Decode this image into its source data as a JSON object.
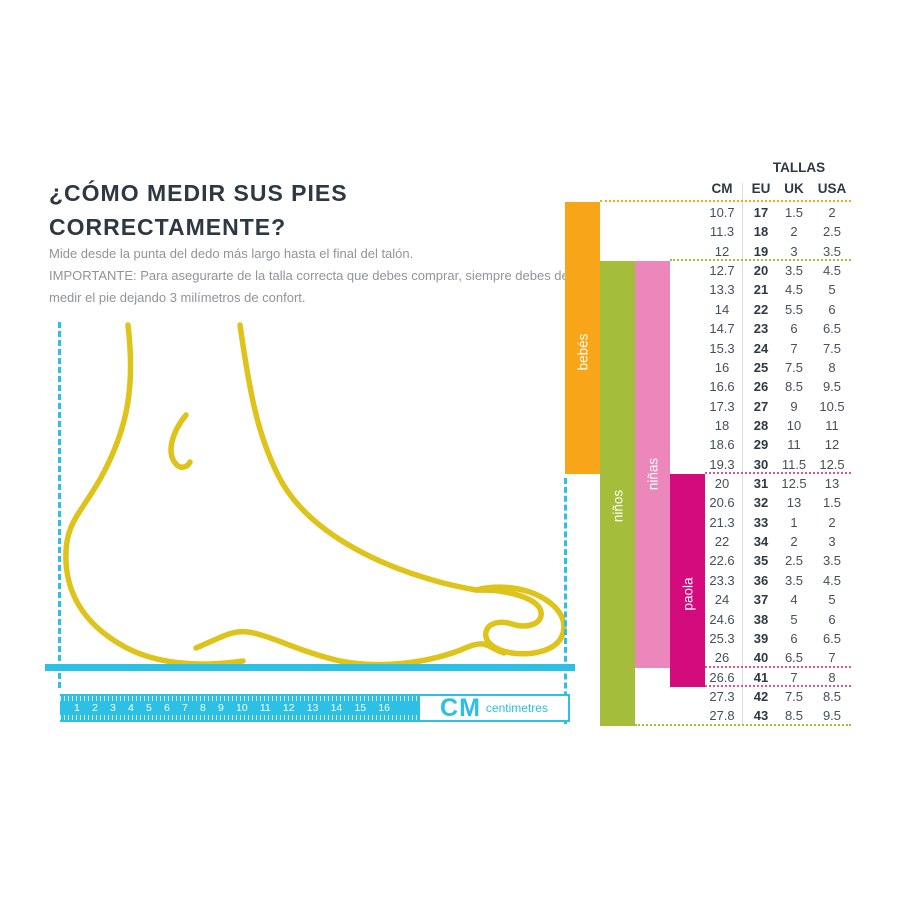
{
  "header": {
    "title_line1": "¿CÓMO MEDIR SUS PIES",
    "title_line2": "CORRECTAMENTE?",
    "instruction": "Mide desde la punta del dedo más largo hasta el final del talón.",
    "important": "IMPORTANTE: Para asegurarte de la talla correcta que debes comprar, siempre debes de medir el pie dejando 3 milímetros de confort."
  },
  "ruler": {
    "numbers": [
      "1",
      "2",
      "3",
      "4",
      "5",
      "6",
      "7",
      "8",
      "9",
      "10",
      "11",
      "12",
      "13",
      "14",
      "15",
      "16"
    ],
    "unit_big": "CM",
    "unit_small": "centimetres"
  },
  "size_table": {
    "title": "TALLAS",
    "columns": [
      "CM",
      "EU",
      "UK",
      "USA"
    ],
    "rows": [
      [
        "10.7",
        "17",
        "1.5",
        "2"
      ],
      [
        "11.3",
        "18",
        "2",
        "2.5"
      ],
      [
        "12",
        "19",
        "3",
        "3.5"
      ],
      [
        "12.7",
        "20",
        "3.5",
        "4.5"
      ],
      [
        "13.3",
        "21",
        "4.5",
        "5"
      ],
      [
        "14",
        "22",
        "5.5",
        "6"
      ],
      [
        "14.7",
        "23",
        "6",
        "6.5"
      ],
      [
        "15.3",
        "24",
        "7",
        "7.5"
      ],
      [
        "16",
        "25",
        "7.5",
        "8"
      ],
      [
        "16.6",
        "26",
        "8.5",
        "9.5"
      ],
      [
        "17.3",
        "27",
        "9",
        "10.5"
      ],
      [
        "18",
        "28",
        "10",
        "11"
      ],
      [
        "18.6",
        "29",
        "11",
        "12"
      ],
      [
        "19.3",
        "30",
        "11.5",
        "12.5"
      ],
      [
        "20",
        "31",
        "12.5",
        "13"
      ],
      [
        "20.6",
        "32",
        "13",
        "1.5"
      ],
      [
        "21.3",
        "33",
        "1",
        "2"
      ],
      [
        "22",
        "34",
        "2",
        "3"
      ],
      [
        "22.6",
        "35",
        "2.5",
        "3.5"
      ],
      [
        "23.3",
        "36",
        "3.5",
        "4.5"
      ],
      [
        "24",
        "37",
        "4",
        "5"
      ],
      [
        "24.6",
        "38",
        "5",
        "6"
      ],
      [
        "25.3",
        "39",
        "6",
        "6.5"
      ],
      [
        "26",
        "40",
        "6.5",
        "7"
      ],
      [
        "26.6",
        "41",
        "7",
        "8"
      ],
      [
        "27.3",
        "42",
        "7.5",
        "8.5"
      ],
      [
        "27.8",
        "43",
        "8.5",
        "9.5"
      ]
    ]
  },
  "categories": [
    {
      "label": "bebés",
      "color": "#f9a51a",
      "eu_span": "17-30"
    },
    {
      "label": "niños",
      "color": "#a4bd3a",
      "eu_span": "20-43"
    },
    {
      "label": "niñas",
      "color": "#ec87bc",
      "eu_span": "20-40"
    },
    {
      "label": "paola",
      "color": "#d40b7c",
      "eu_span": "31-41"
    }
  ],
  "colors": {
    "cyan": "#2bc0e4",
    "yellow_foot": "#ddc31a",
    "orange": "#f9a51a",
    "green": "#a4bd3a",
    "pink": "#ec87bc",
    "magenta": "#d40b7c",
    "dotted_pink": "#e0519b",
    "title_text": "#2e3842",
    "body_text": "#8e959b",
    "table_text": "#46505c"
  }
}
